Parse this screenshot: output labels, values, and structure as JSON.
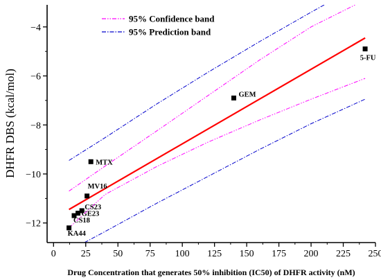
{
  "chart_data": {
    "type": "scatter",
    "xlabel": "Drug Concentration that generates 50% inhibition (IC50) of DHFR activity (nM)",
    "ylabel": "DHFR DBS (kcal/mol)",
    "xlim": [
      -5,
      250
    ],
    "ylim": [
      -12.8,
      -3.1
    ],
    "x_ticks": [
      0,
      25,
      50,
      75,
      100,
      125,
      150,
      175,
      200,
      225,
      250
    ],
    "y_ticks": [
      -12,
      -10,
      -8,
      -6,
      -4
    ],
    "legend_position": "top-center",
    "points": [
      {
        "label": "KA44",
        "x": 12,
        "y": -12.2
      },
      {
        "label": "CS18",
        "x": 16,
        "y": -11.7
      },
      {
        "label": "GE23",
        "x": 19,
        "y": -11.6
      },
      {
        "label": "CS23",
        "x": 22,
        "y": -11.5
      },
      {
        "label": "MV16",
        "x": 26,
        "y": -10.9
      },
      {
        "label": "MTX",
        "x": 29,
        "y": -9.5
      },
      {
        "label": "GEM",
        "x": 140,
        "y": -6.9
      },
      {
        "label": "5-FU",
        "x": 242,
        "y": -4.9
      }
    ],
    "fit_line": {
      "x": [
        12,
        242
      ],
      "y": [
        -11.45,
        -4.45
      ],
      "color": "#ff0000"
    },
    "series": [
      {
        "name": "95% Confidence band",
        "color": "#ff00ff",
        "upper": {
          "x": [
            12,
            40,
            80,
            120,
            160,
            200,
            242
          ],
          "y": [
            -10.7,
            -9.68,
            -8.25,
            -6.8,
            -5.35,
            -4.0,
            -2.9
          ]
        },
        "lower": {
          "x": [
            12,
            40,
            80,
            120,
            160,
            200,
            242
          ],
          "y": [
            -12.2,
            -10.84,
            -9.7,
            -8.7,
            -7.8,
            -6.95,
            -6.1
          ]
        }
      },
      {
        "name": "95% Prediction band",
        "color": "#0000cc",
        "upper": {
          "x": [
            12,
            40,
            80,
            120,
            160,
            200,
            212
          ],
          "y": [
            -9.45,
            -8.52,
            -7.15,
            -5.85,
            -4.6,
            -3.4,
            -3.05
          ]
        },
        "lower": {
          "x": [
            24,
            40,
            80,
            120,
            160,
            200,
            242
          ],
          "y": [
            -12.8,
            -12.35,
            -11.2,
            -10.1,
            -9.0,
            -7.95,
            -6.95
          ]
        }
      }
    ]
  }
}
